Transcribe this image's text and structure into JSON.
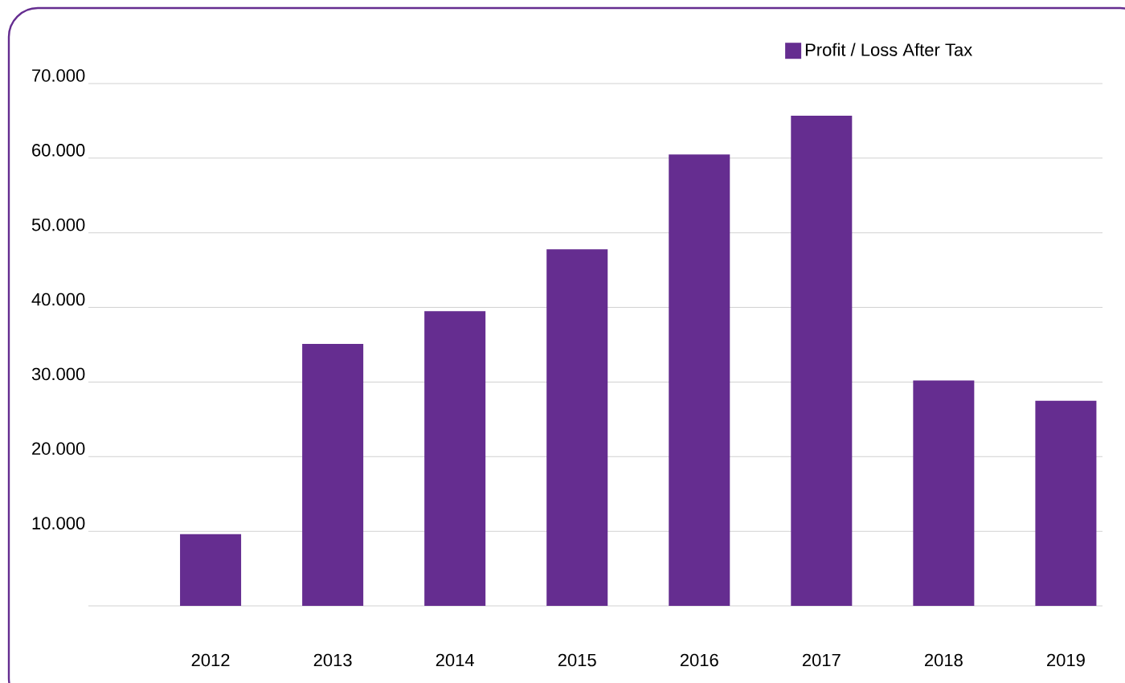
{
  "chart_data": {
    "type": "bar",
    "categories": [
      "2012",
      "2013",
      "2014",
      "2015",
      "2016",
      "2017",
      "2018",
      "2019"
    ],
    "series": [
      {
        "name": "Profit / Loss After Tax",
        "color": "#652d90",
        "values": [
          9600,
          35100,
          39500,
          47800,
          60500,
          65700,
          30200,
          27500
        ]
      }
    ],
    "ylim": [
      0,
      70000
    ],
    "yticks": [
      {
        "value": 0,
        "label": null
      },
      {
        "value": 10000,
        "label": "10.000"
      },
      {
        "value": 20000,
        "label": "20.000"
      },
      {
        "value": 30000,
        "label": "30.000"
      },
      {
        "value": 40000,
        "label": "40.000"
      },
      {
        "value": 50000,
        "label": "50.000"
      },
      {
        "value": 60000,
        "label": "60.000"
      },
      {
        "value": 70000,
        "label": "70.000"
      }
    ],
    "grid": "y",
    "legend": "top right"
  }
}
